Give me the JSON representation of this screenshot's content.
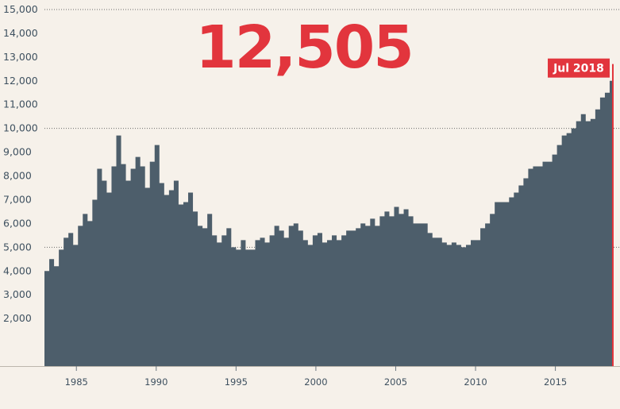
{
  "chart_data": {
    "type": "area",
    "headline": "12,505",
    "annotation": "Jul 2018",
    "colors": {
      "area": "#4d5e6b",
      "background": "#f6f1ea",
      "accent": "#e2353d",
      "text": "#3f5160"
    },
    "ylim": [
      0,
      15000
    ],
    "yticks": [
      2000,
      3000,
      4000,
      5000,
      6000,
      7000,
      8000,
      9000,
      10000,
      11000,
      12000,
      13000,
      14000,
      15000
    ],
    "ytick_labels": [
      "2,000",
      "3,000",
      "4,000",
      "5,000",
      "6,000",
      "7,000",
      "8,000",
      "9,000",
      "10,000",
      "11,000",
      "12,000",
      "13,000",
      "14,000",
      "15,000"
    ],
    "dotted_gridlines": [
      5000,
      10000,
      15000
    ],
    "xlim": [
      1983.0,
      2018.6
    ],
    "xticks": [
      1985,
      1990,
      1995,
      2000,
      2005,
      2010,
      2015
    ],
    "xtick_labels": [
      "1985",
      "1990",
      "1995",
      "2000",
      "2005",
      "2010",
      "2015"
    ],
    "x": [
      1983.0,
      1983.3,
      1983.6,
      1983.9,
      1984.2,
      1984.5,
      1984.8,
      1985.1,
      1985.4,
      1985.7,
      1986.0,
      1986.3,
      1986.6,
      1986.9,
      1987.2,
      1987.5,
      1987.8,
      1988.1,
      1988.4,
      1988.7,
      1989.0,
      1989.3,
      1989.6,
      1989.9,
      1990.2,
      1990.5,
      1990.8,
      1991.1,
      1991.4,
      1991.7,
      1992.0,
      1992.3,
      1992.6,
      1992.9,
      1993.2,
      1993.5,
      1993.8,
      1994.1,
      1994.4,
      1994.7,
      1995.0,
      1995.3,
      1995.6,
      1995.9,
      1996.2,
      1996.5,
      1996.8,
      1997.1,
      1997.4,
      1997.7,
      1998.0,
      1998.3,
      1998.6,
      1998.9,
      1999.2,
      1999.5,
      1999.8,
      2000.1,
      2000.4,
      2000.7,
      2001.0,
      2001.3,
      2001.6,
      2001.9,
      2002.2,
      2002.5,
      2002.8,
      2003.1,
      2003.4,
      2003.7,
      2004.0,
      2004.3,
      2004.6,
      2004.9,
      2005.2,
      2005.5,
      2005.8,
      2006.1,
      2006.4,
      2006.7,
      2007.0,
      2007.3,
      2007.6,
      2007.9,
      2008.2,
      2008.5,
      2008.8,
      2009.1,
      2009.4,
      2009.7,
      2010.0,
      2010.3,
      2010.6,
      2010.9,
      2011.2,
      2011.5,
      2011.8,
      2012.1,
      2012.4,
      2012.7,
      2013.0,
      2013.3,
      2013.6,
      2013.9,
      2014.2,
      2014.5,
      2014.8,
      2015.1,
      2015.4,
      2015.7,
      2016.0,
      2016.3,
      2016.6,
      2016.9,
      2017.2,
      2017.5,
      2017.8,
      2018.1,
      2018.4,
      2018.6
    ],
    "values": [
      4000,
      4500,
      4200,
      4900,
      5400,
      5600,
      5100,
      5900,
      6400,
      6100,
      7000,
      8300,
      7800,
      7300,
      8400,
      9700,
      8500,
      7800,
      8300,
      8800,
      8400,
      7500,
      8600,
      9300,
      7700,
      7200,
      7400,
      7800,
      6800,
      6900,
      7300,
      6500,
      5900,
      5800,
      6400,
      5500,
      5200,
      5500,
      5800,
      5000,
      4900,
      5300,
      4900,
      4900,
      5300,
      5400,
      5200,
      5500,
      5900,
      5700,
      5400,
      5900,
      6000,
      5700,
      5300,
      5100,
      5500,
      5600,
      5200,
      5300,
      5500,
      5300,
      5500,
      5700,
      5700,
      5800,
      6000,
      5900,
      6200,
      5900,
      6300,
      6500,
      6300,
      6700,
      6400,
      6600,
      6300,
      6000,
      6000,
      6000,
      5600,
      5400,
      5400,
      5200,
      5100,
      5200,
      5100,
      5000,
      5100,
      5300,
      5300,
      5800,
      6000,
      6400,
      6900,
      6900,
      6900,
      7100,
      7300,
      7600,
      7900,
      8300,
      8400,
      8400,
      8600,
      8600,
      8900,
      9300,
      9700,
      9800,
      10000,
      10300,
      10600,
      10300,
      10400,
      10800,
      11300,
      11500,
      12000,
      12505
    ]
  }
}
